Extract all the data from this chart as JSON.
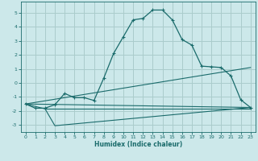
{
  "xlabel": "Humidex (Indice chaleur)",
  "background_color": "#cce8ea",
  "grid_color": "#aacccc",
  "line_color": "#1a6b6b",
  "xlim": [
    -0.5,
    23.5
  ],
  "ylim": [
    -3.5,
    5.8
  ],
  "yticks": [
    -3,
    -2,
    -1,
    0,
    1,
    2,
    3,
    4,
    5
  ],
  "xticks": [
    0,
    1,
    2,
    3,
    4,
    5,
    6,
    7,
    8,
    9,
    10,
    11,
    12,
    13,
    14,
    15,
    16,
    17,
    18,
    19,
    20,
    21,
    22,
    23
  ],
  "line1_x": [
    0,
    1,
    2,
    3,
    4,
    5,
    6,
    7,
    8,
    9,
    10,
    11,
    12,
    13,
    14,
    15,
    16,
    17,
    18,
    19,
    20,
    21,
    22,
    23
  ],
  "line1_y": [
    -1.5,
    -1.8,
    -1.8,
    -1.55,
    -0.75,
    -1.05,
    -1.05,
    -1.25,
    0.35,
    2.1,
    3.3,
    4.5,
    4.6,
    5.2,
    5.2,
    4.5,
    3.1,
    2.7,
    1.2,
    1.15,
    1.1,
    0.5,
    -1.2,
    -1.75
  ],
  "line2_x": [
    0,
    2,
    3,
    23
  ],
  "line2_y": [
    -1.5,
    -1.85,
    -3.05,
    -1.75
  ],
  "line3_x": [
    0,
    23
  ],
  "line3_y": [
    -1.5,
    1.1
  ],
  "line4_x": [
    0,
    23
  ],
  "line4_y": [
    -1.5,
    -1.75
  ],
  "line5_x": [
    2,
    7,
    23
  ],
  "line5_y": [
    -1.85,
    -1.85,
    -1.85
  ]
}
